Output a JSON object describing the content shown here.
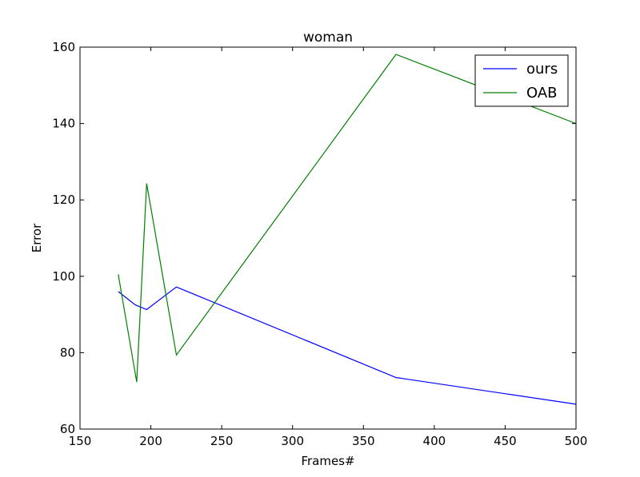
{
  "chart_data": {
    "type": "line",
    "title": "woman",
    "xlabel": "Frames#",
    "ylabel": "Error",
    "xlim": [
      150,
      500
    ],
    "ylim": [
      60,
      160
    ],
    "xticks": [
      150,
      200,
      250,
      300,
      350,
      400,
      450,
      500
    ],
    "yticks": [
      60,
      80,
      100,
      120,
      140,
      160
    ],
    "grid": false,
    "legend_position": "top-right",
    "series": [
      {
        "name": "ours",
        "color": "#0000ff",
        "x": [
          177,
          189,
          197,
          218,
          373,
          500
        ],
        "y": [
          96,
          92.5,
          91.3,
          97.2,
          73.5,
          66.5
        ]
      },
      {
        "name": "OAB",
        "color": "#008000",
        "x": [
          177,
          190,
          197,
          218,
          373,
          500
        ],
        "y": [
          100.5,
          72.3,
          124.3,
          79.4,
          158.1,
          140
        ]
      }
    ]
  }
}
